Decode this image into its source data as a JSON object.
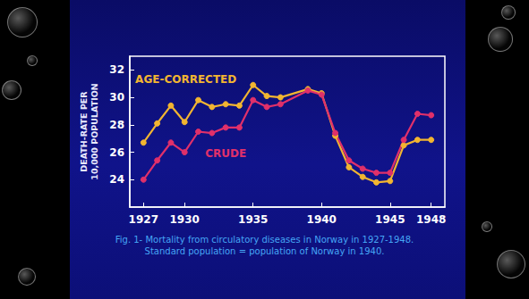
{
  "chart_data": {
    "type": "line",
    "title": "Fig. 1- Mortality from circulatory diseases in Norway in 1927-1948.",
    "subtitle": "Standard population = population of Norway in 1940.",
    "y_label": "DEATH-RATE PER\n10,000 POPULATION",
    "x": [
      1927,
      1928,
      1929,
      1930,
      1931,
      1932,
      1933,
      1934,
      1935,
      1936,
      1937,
      1939,
      1940,
      1941,
      1942,
      1943,
      1944,
      1945,
      1946,
      1947,
      1948
    ],
    "series": [
      {
        "name": "AGE-CORRECTED",
        "color": "#f2b531",
        "values": [
          26.7,
          28.1,
          29.4,
          28.2,
          29.8,
          29.3,
          29.5,
          29.4,
          30.9,
          30.1,
          30.0,
          30.6,
          30.3,
          27.2,
          24.9,
          24.2,
          23.8,
          23.9,
          26.5,
          26.9,
          26.9
        ]
      },
      {
        "name": "CRUDE",
        "color": "#e0306a",
        "values": [
          24.0,
          25.4,
          26.7,
          26.0,
          27.5,
          27.4,
          27.8,
          27.8,
          29.8,
          29.3,
          29.5,
          30.5,
          30.2,
          27.4,
          25.4,
          24.8,
          24.5,
          24.5,
          26.9,
          28.8,
          28.7
        ]
      }
    ],
    "annotations": [
      {
        "text": "AGE-CORRECTED",
        "x": 1926.4,
        "y": 31.3
      },
      {
        "text": "CRUDE",
        "x": 1931.5,
        "y": 25.9
      }
    ],
    "xlim": [
      1926,
      1949
    ],
    "xticks": [
      1927,
      1930,
      1935,
      1940,
      1945,
      1948
    ],
    "ylim": [
      22,
      33
    ],
    "yticks": [
      24,
      26,
      28,
      30,
      32
    ],
    "grid": false,
    "marker": "circle",
    "line_style": "solid"
  }
}
